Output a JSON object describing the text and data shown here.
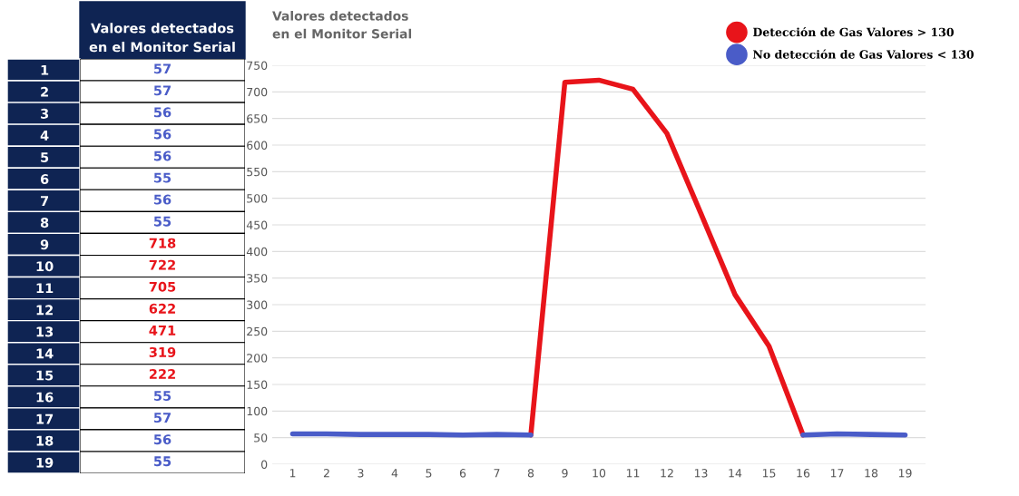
{
  "chart_data": [
    {
      "type": "heatmap",
      "categories": [
        "Valores detectados\nen el Monitor Serial"
      ],
      "y_categories": [
        "1",
        "2",
        "3",
        "4",
        "5",
        "6",
        "7",
        "8",
        "9",
        "10",
        "11",
        "12",
        "13",
        "14",
        "15",
        "16",
        "17",
        "18",
        "19"
      ],
      "cells": [
        [
          57
        ],
        [
          57
        ],
        [
          56
        ],
        [
          56
        ],
        [
          56
        ],
        [
          55
        ],
        [
          56
        ],
        [
          55
        ],
        [
          718
        ],
        [
          722
        ],
        [
          705
        ],
        [
          622
        ],
        [
          471
        ],
        [
          319
        ],
        [
          222
        ],
        [
          55
        ],
        [
          57
        ],
        [
          56
        ],
        [
          55
        ]
      ],
      "data_labels": true
    },
    {
      "type": "line",
      "title": "Valores detectados\nen el Monitor Serial",
      "categories": [
        "1",
        "2",
        "3",
        "4",
        "5",
        "6",
        "7",
        "8",
        "9",
        "10",
        "11",
        "12",
        "13",
        "14",
        "15",
        "16",
        "17",
        "18",
        "19"
      ],
      "series": [
        {
          "name": "Detección de Gas Valores > 130",
          "color": "#e8141a",
          "values": [
            null,
            null,
            null,
            null,
            null,
            null,
            null,
            55,
            718,
            722,
            705,
            622,
            471,
            319,
            222,
            55,
            null,
            null,
            null
          ]
        },
        {
          "name": "No detección de Gas Valores < 130",
          "color": "#4a5cc8",
          "values": [
            57,
            57,
            56,
            56,
            56,
            55,
            56,
            55,
            null,
            null,
            null,
            null,
            null,
            null,
            null,
            55,
            57,
            56,
            55
          ]
        }
      ],
      "ylim": [
        0,
        750
      ],
      "yticks": [
        0,
        50,
        100,
        150,
        200,
        250,
        300,
        350,
        400,
        450,
        500,
        550,
        600,
        650,
        700,
        750
      ],
      "grid": "y",
      "legend": "top right",
      "marker": "none",
      "line_style": "solid"
    }
  ]
}
